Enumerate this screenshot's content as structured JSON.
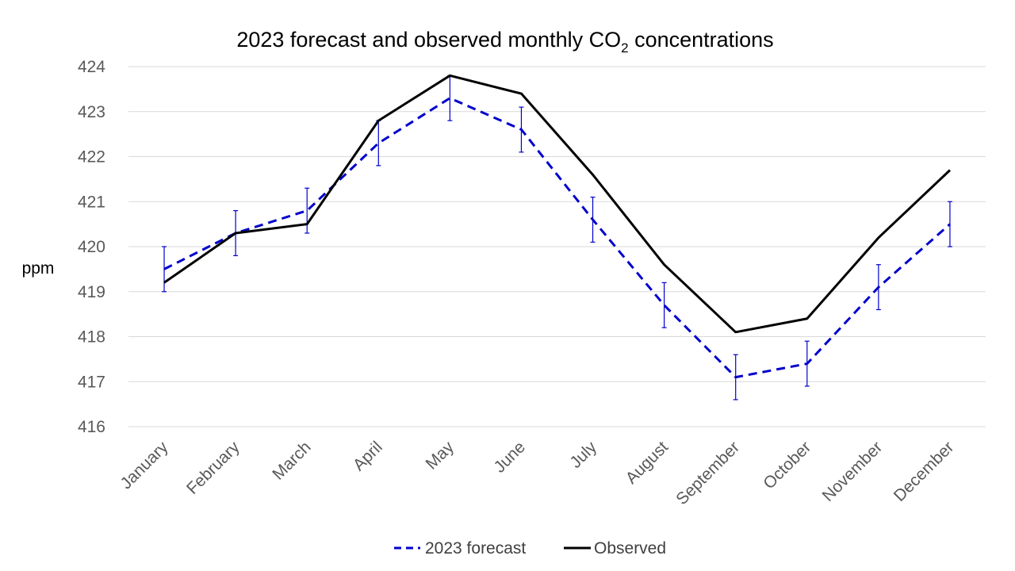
{
  "chart_data": {
    "type": "line",
    "title": {
      "main": "2023 forecast and observed monthly CO",
      "subscript": "2",
      "suffix": " concentrations"
    },
    "ylabel": "ppm",
    "xlabel": "",
    "ylim": [
      416,
      424
    ],
    "yticks": [
      "416",
      "417",
      "418",
      "419",
      "420",
      "421",
      "422",
      "423",
      "424"
    ],
    "categories": [
      "January",
      "February",
      "March",
      "April",
      "May",
      "June",
      "July",
      "August",
      "September",
      "October",
      "November",
      "December"
    ],
    "grid": "horizontal",
    "legend_position": "bottom",
    "series": [
      {
        "name": "2023 forecast",
        "color": "#0000CC",
        "style": "dashed",
        "values": [
          419.5,
          420.3,
          420.8,
          422.3,
          423.3,
          422.6,
          420.6,
          418.7,
          417.1,
          417.4,
          419.1,
          420.5
        ],
        "error_low": [
          419.0,
          419.8,
          420.3,
          421.8,
          422.8,
          422.1,
          420.1,
          418.2,
          416.6,
          416.9,
          418.6,
          420.0
        ],
        "error_high": [
          420.0,
          420.8,
          421.3,
          422.8,
          423.8,
          423.1,
          421.1,
          419.2,
          417.6,
          417.9,
          419.6,
          421.0
        ]
      },
      {
        "name": "Observed",
        "color": "#000000",
        "style": "solid",
        "values": [
          419.2,
          420.3,
          420.5,
          422.8,
          423.8,
          423.4,
          421.6,
          419.6,
          418.1,
          418.4,
          420.2,
          421.7
        ]
      }
    ]
  }
}
